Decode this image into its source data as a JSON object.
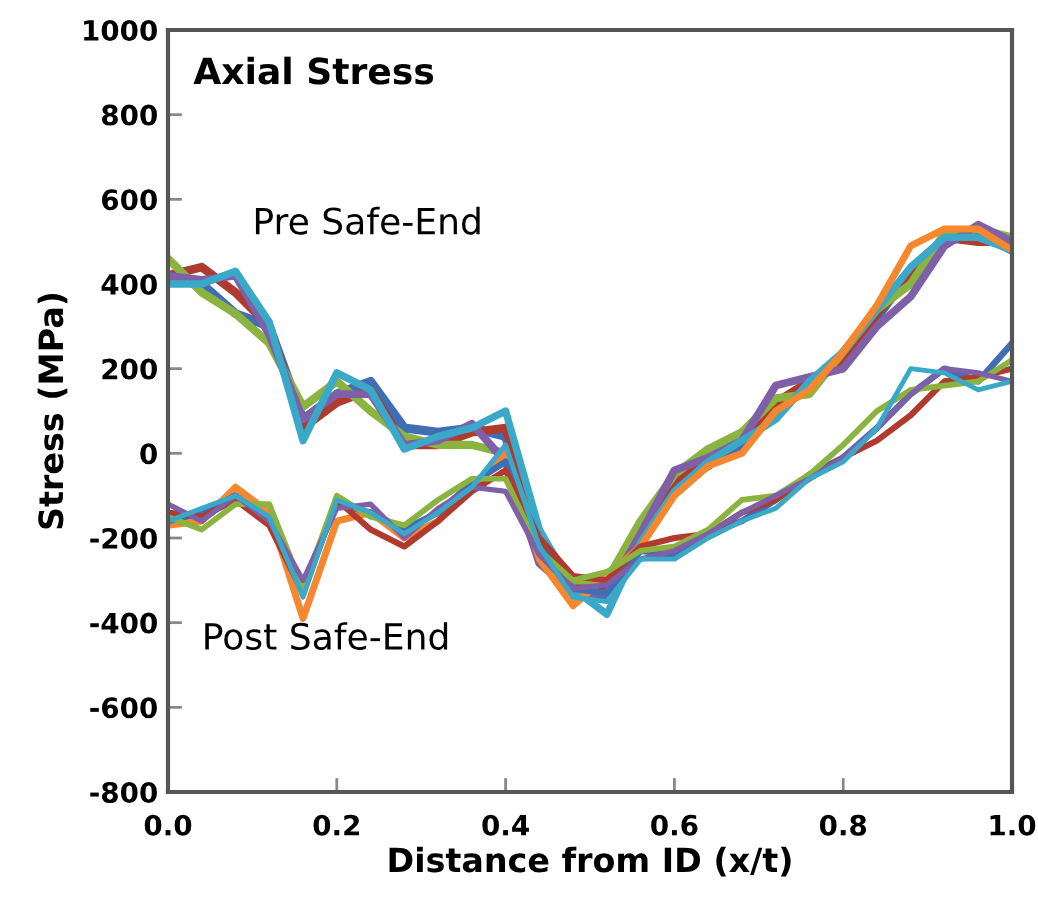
{
  "chart_data": {
    "type": "line",
    "title": "Axial Stress",
    "xlabel": "Distance from ID (x/t)",
    "ylabel": "Stress (MPa)",
    "x": [
      0,
      0.04,
      0.08,
      0.12,
      0.16,
      0.2,
      0.24,
      0.28,
      0.32,
      0.36,
      0.4,
      0.44,
      0.48,
      0.52,
      0.56,
      0.6,
      0.64,
      0.68,
      0.72,
      0.76,
      0.8,
      0.84,
      0.88,
      0.92,
      0.96,
      1.0
    ],
    "series": [
      {
        "color": "#3f6eb5",
        "values": [
          410,
          400,
          330,
          300,
          80,
          140,
          170,
          60,
          50,
          60,
          40,
          -210,
          -330,
          -340,
          -180,
          -80,
          -20,
          20,
          110,
          160,
          230,
          320,
          430,
          500,
          520,
          480
        ]
      },
      {
        "color": "#b03a2e",
        "values": [
          420,
          440,
          380,
          300,
          60,
          120,
          150,
          20,
          20,
          50,
          60,
          -190,
          -310,
          -320,
          -190,
          -60,
          -30,
          40,
          120,
          170,
          220,
          330,
          420,
          510,
          500,
          500
        ]
      },
      {
        "color": "#8ab33f",
        "values": [
          460,
          380,
          330,
          260,
          110,
          170,
          100,
          40,
          20,
          20,
          0,
          -220,
          -300,
          -300,
          -160,
          -50,
          10,
          50,
          130,
          140,
          240,
          340,
          400,
          520,
          530,
          510
        ]
      },
      {
        "color": "#7f5fa8",
        "values": [
          420,
          410,
          420,
          280,
          80,
          140,
          140,
          20,
          30,
          70,
          -20,
          -260,
          -330,
          -330,
          -190,
          -40,
          -10,
          30,
          160,
          180,
          200,
          300,
          370,
          490,
          540,
          500
        ]
      },
      {
        "color": "#3aa8c8",
        "values": [
          400,
          400,
          430,
          310,
          30,
          190,
          150,
          10,
          40,
          60,
          100,
          -180,
          -320,
          -380,
          -210,
          -90,
          -20,
          30,
          80,
          170,
          240,
          340,
          440,
          510,
          510,
          480
        ]
      },
      {
        "color": "#f5872f",
        "values": [
          -170,
          -160,
          -80,
          -140,
          -390,
          -160,
          -140,
          -200,
          -160,
          -80,
          0,
          -250,
          -360,
          -290,
          -220,
          -100,
          -30,
          0,
          100,
          150,
          240,
          350,
          490,
          530,
          530,
          480
        ]
      },
      {
        "color": "#3f6eb5",
        "values": [
          -160,
          -140,
          -100,
          -160,
          -310,
          -120,
          -140,
          -180,
          -140,
          -70,
          -20,
          -210,
          -320,
          -330,
          -230,
          -240,
          -190,
          -160,
          -110,
          -50,
          -10,
          60,
          140,
          200,
          170,
          260
        ]
      },
      {
        "color": "#b03a2e",
        "values": [
          -140,
          -150,
          -110,
          -170,
          -330,
          -110,
          -180,
          -220,
          -160,
          -90,
          -40,
          -200,
          -290,
          -300,
          -220,
          -200,
          -190,
          -140,
          -110,
          -60,
          -10,
          30,
          90,
          170,
          180,
          200
        ]
      },
      {
        "color": "#8ab33f",
        "values": [
          -150,
          -180,
          -120,
          -120,
          -320,
          -100,
          -150,
          -170,
          -110,
          -60,
          -60,
          -230,
          -300,
          -280,
          -230,
          -220,
          -180,
          -110,
          -100,
          -50,
          20,
          100,
          150,
          160,
          170,
          220
        ]
      },
      {
        "color": "#7f5fa8",
        "values": [
          -120,
          -160,
          -100,
          -160,
          -300,
          -130,
          -120,
          -200,
          -130,
          -80,
          -90,
          -240,
          -320,
          -310,
          -250,
          -230,
          -190,
          -140,
          -100,
          -60,
          -10,
          60,
          140,
          200,
          190,
          170
        ]
      },
      {
        "color": "#3aa8c8",
        "values": [
          -160,
          -130,
          -100,
          -150,
          -340,
          -110,
          -140,
          -190,
          -140,
          -80,
          20,
          -220,
          -340,
          -350,
          -250,
          -250,
          -200,
          -160,
          -130,
          -60,
          -20,
          60,
          200,
          190,
          150,
          170
        ]
      }
    ],
    "annotations": [
      "Pre Safe-End",
      "Post Safe-End"
    ],
    "xlim": [
      0,
      1
    ],
    "ylim": [
      -800,
      1000
    ],
    "xticks": [
      {
        "value": 0,
        "label": "0.0"
      },
      {
        "value": 0.2,
        "label": "0.2"
      },
      {
        "value": 0.4,
        "label": "0.4"
      },
      {
        "value": 0.6,
        "label": "0.6"
      },
      {
        "value": 0.8,
        "label": "0.8"
      },
      {
        "value": 1,
        "label": "1.0"
      }
    ],
    "yticks": [
      -800,
      -600,
      -400,
      -200,
      0,
      200,
      400,
      600,
      800,
      1000
    ],
    "grid": false,
    "legend": false,
    "marker": "none",
    "line_style": "solid"
  }
}
